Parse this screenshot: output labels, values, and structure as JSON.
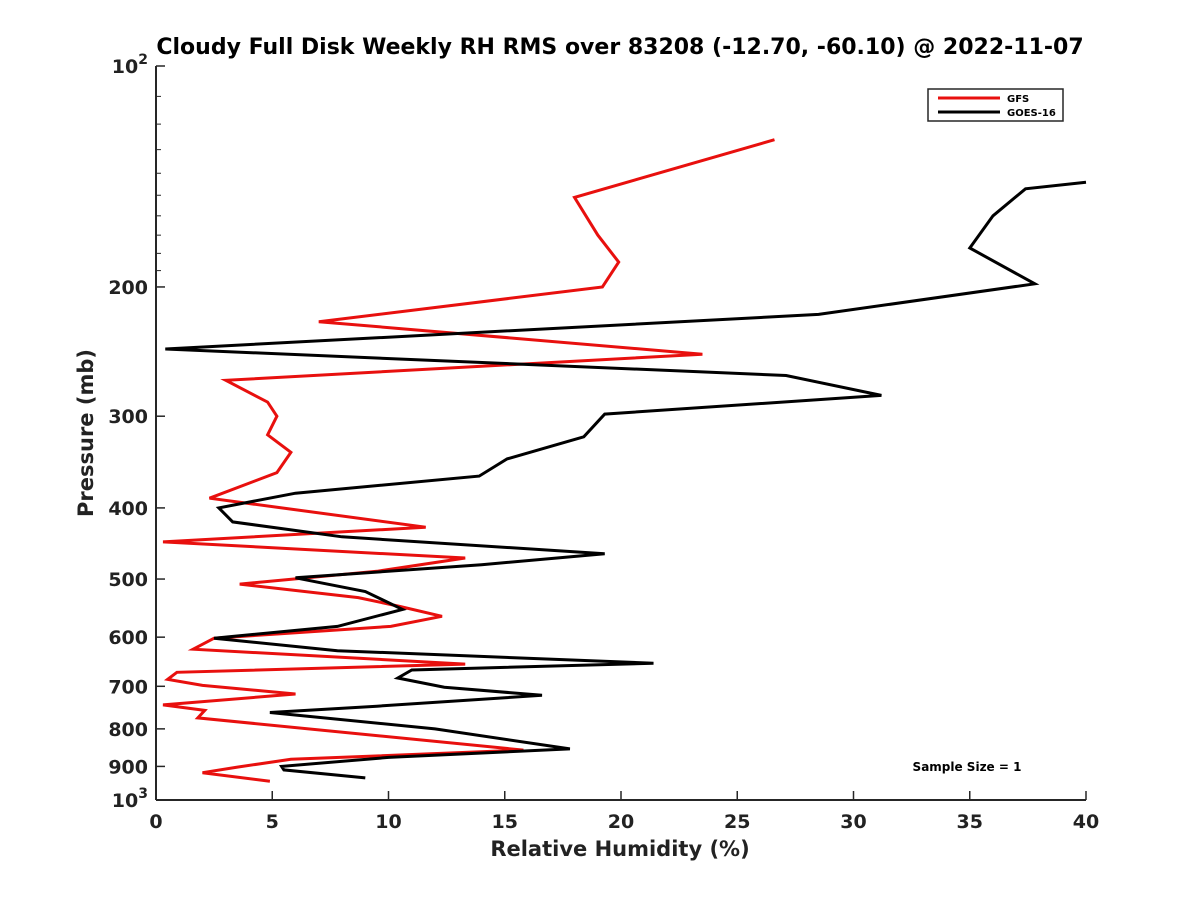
{
  "chart_data": {
    "type": "line",
    "title": "Cloudy Full Disk Weekly RH RMS over 83208 (-12.70, -60.10) @ 2022-11-07",
    "xlabel": "Relative Humidity (%)",
    "ylabel": "Pressure (mb)",
    "xlim": [
      0,
      40
    ],
    "ylim": [
      100,
      1000
    ],
    "yscale": "log",
    "y_reversed": true,
    "x_ticks": [
      0,
      5,
      10,
      15,
      20,
      25,
      30,
      35,
      40
    ],
    "x_tick_labels": [
      "0",
      "5",
      "10",
      "15",
      "20",
      "25",
      "30",
      "35",
      "40"
    ],
    "y_ticks": [
      100,
      200,
      300,
      400,
      500,
      600,
      700,
      800,
      900,
      1000
    ],
    "y_tick_labels": [
      {
        "base": "10",
        "exp": "2"
      },
      {
        "base": "200",
        "exp": ""
      },
      {
        "base": "300",
        "exp": ""
      },
      {
        "base": "400",
        "exp": ""
      },
      {
        "base": "500",
        "exp": ""
      },
      {
        "base": "600",
        "exp": ""
      },
      {
        "base": "700",
        "exp": ""
      },
      {
        "base": "800",
        "exp": ""
      },
      {
        "base": "900",
        "exp": ""
      },
      {
        "base": "10",
        "exp": "3"
      }
    ],
    "grid": false,
    "legend_position": "top-right",
    "annotation": "Sample Size = 1",
    "series": [
      {
        "name": "GFS",
        "color": "#e8100e",
        "points": [
          [
            26.6,
            126
          ],
          [
            18.0,
            151
          ],
          [
            19.0,
            170
          ],
          [
            19.9,
            185
          ],
          [
            19.2,
            200
          ],
          [
            7.0,
            223
          ],
          [
            23.5,
            247
          ],
          [
            3.0,
            268
          ],
          [
            4.8,
            287
          ],
          [
            5.2,
            300
          ],
          [
            4.8,
            318
          ],
          [
            5.8,
            336
          ],
          [
            5.2,
            358
          ],
          [
            2.3,
            388
          ],
          [
            11.6,
            425
          ],
          [
            0.3,
            445
          ],
          [
            13.3,
            468
          ],
          [
            9.5,
            488
          ],
          [
            3.6,
            508
          ],
          [
            8.7,
            530
          ],
          [
            10.5,
            545
          ],
          [
            12.3,
            562
          ],
          [
            10.1,
            580
          ],
          [
            2.5,
            602
          ],
          [
            1.6,
            623
          ],
          [
            13.3,
            653
          ],
          [
            0.9,
            670
          ],
          [
            0.5,
            685
          ],
          [
            2.0,
            698
          ],
          [
            6.0,
            717
          ],
          [
            0.3,
            742
          ],
          [
            2.1,
            755
          ],
          [
            1.8,
            773
          ],
          [
            15.8,
            855
          ],
          [
            5.8,
            880
          ],
          [
            3.5,
            902
          ],
          [
            2.0,
            918
          ],
          [
            4.9,
            943
          ]
        ]
      },
      {
        "name": "GOES-16",
        "color": "#000000",
        "points": [
          [
            40.0,
            144
          ],
          [
            37.4,
            147
          ],
          [
            36.0,
            160
          ],
          [
            35.0,
            177
          ],
          [
            37.8,
            198
          ],
          [
            28.5,
            218
          ],
          [
            0.4,
            243
          ],
          [
            27.1,
            264
          ],
          [
            31.2,
            281
          ],
          [
            19.3,
            298
          ],
          [
            18.4,
            320
          ],
          [
            15.1,
            343
          ],
          [
            13.9,
            362
          ],
          [
            6.0,
            382
          ],
          [
            2.7,
            400
          ],
          [
            3.3,
            418
          ],
          [
            8.0,
            438
          ],
          [
            19.3,
            462
          ],
          [
            14.0,
            478
          ],
          [
            6.0,
            498
          ],
          [
            9.0,
            520
          ],
          [
            10.6,
            550
          ],
          [
            7.8,
            580
          ],
          [
            2.5,
            602
          ],
          [
            7.8,
            626
          ],
          [
            21.4,
            651
          ],
          [
            11.0,
            665
          ],
          [
            10.4,
            682
          ],
          [
            12.4,
            702
          ],
          [
            16.6,
            720
          ],
          [
            9.5,
            745
          ],
          [
            4.9,
            760
          ],
          [
            12.0,
            800
          ],
          [
            17.8,
            852
          ],
          [
            10.0,
            875
          ],
          [
            5.4,
            900
          ],
          [
            5.5,
            910
          ],
          [
            9.0,
            933
          ]
        ]
      }
    ]
  }
}
